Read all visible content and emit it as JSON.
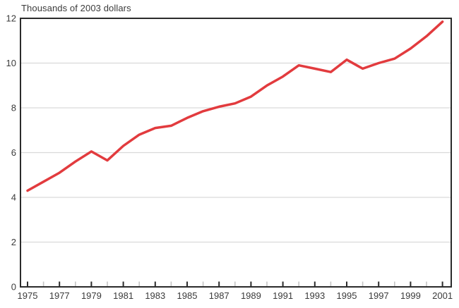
{
  "title": "Thousands of 2003 dollars",
  "chart_data": {
    "type": "line",
    "title": "Thousands of 2003 dollars",
    "ylabel": "Thousands of 2003 dollars",
    "xlabel": "",
    "x": [
      1975,
      1976,
      1977,
      1978,
      1979,
      1980,
      1981,
      1982,
      1983,
      1984,
      1985,
      1986,
      1987,
      1988,
      1989,
      1990,
      1991,
      1992,
      1993,
      1994,
      1995,
      1996,
      1997,
      1998,
      1999,
      2000,
      2001
    ],
    "series": [
      {
        "name": "Thousands of 2003 dollars",
        "values": [
          4.3,
          4.7,
          5.1,
          5.6,
          6.05,
          5.65,
          6.3,
          6.8,
          7.1,
          7.2,
          7.55,
          7.85,
          8.05,
          8.2,
          8.5,
          9.0,
          9.4,
          9.9,
          9.75,
          9.6,
          10.15,
          9.75,
          10.0,
          10.2,
          10.65,
          11.2,
          11.85
        ]
      }
    ],
    "ylim": [
      0,
      12
    ],
    "yticks": [
      0,
      2,
      4,
      6,
      8,
      10,
      12
    ],
    "xtick_labels": [
      "1975",
      "1977",
      "1979",
      "1981",
      "1983",
      "1985",
      "1987",
      "1989",
      "1991",
      "1993",
      "1995",
      "1997",
      "1999",
      "2001"
    ],
    "grid": "horizontal gridlines at even values, none at top/bottom edge",
    "legend": "none",
    "colors": {
      "line": "#e23b3e",
      "grid": "#d9d9d9",
      "axis": "#2b2b2b",
      "minor_tick": "#c4c4c4",
      "text": "#3b3b3b",
      "background": "#ffffff"
    }
  }
}
